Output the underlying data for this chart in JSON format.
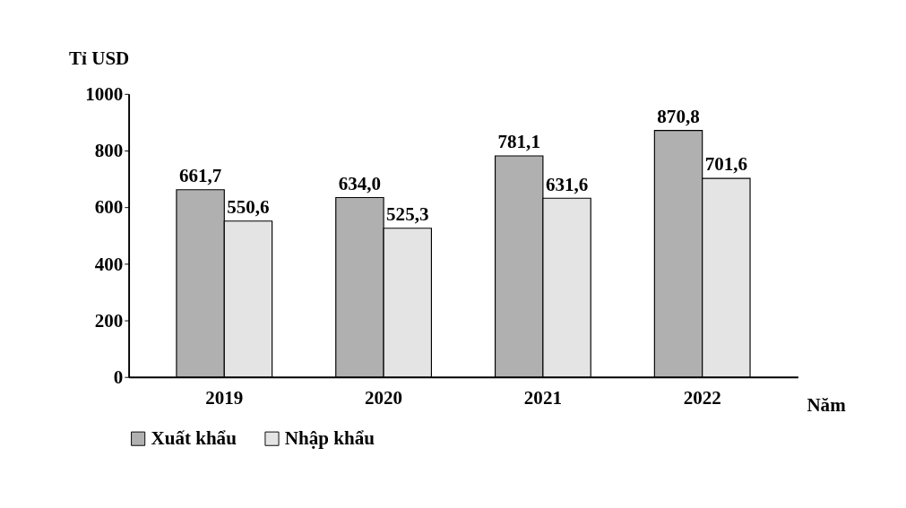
{
  "chart_data": {
    "type": "bar",
    "xlabel": "Năm",
    "ylabel": "Tỉ USD",
    "categories": [
      "2019",
      "2020",
      "2021",
      "2022"
    ],
    "series": [
      {
        "name": "Xuất khẩu",
        "color": "#b0b0b0",
        "values": [
          661.7,
          634.0,
          781.1,
          870.8
        ],
        "value_labels": [
          "661,7",
          "634,0",
          "781,1",
          "870,8"
        ]
      },
      {
        "name": "Nhập khẩu",
        "color": "#e4e4e4",
        "values": [
          550.6,
          525.3,
          631.6,
          701.6
        ],
        "value_labels": [
          "550,6",
          "525,3",
          "631,6",
          "701,6"
        ]
      }
    ],
    "ylim": [
      0,
      1000
    ],
    "yticks": [
      0,
      200,
      400,
      600,
      800,
      1000
    ],
    "grid": false,
    "legend": "bottom"
  }
}
